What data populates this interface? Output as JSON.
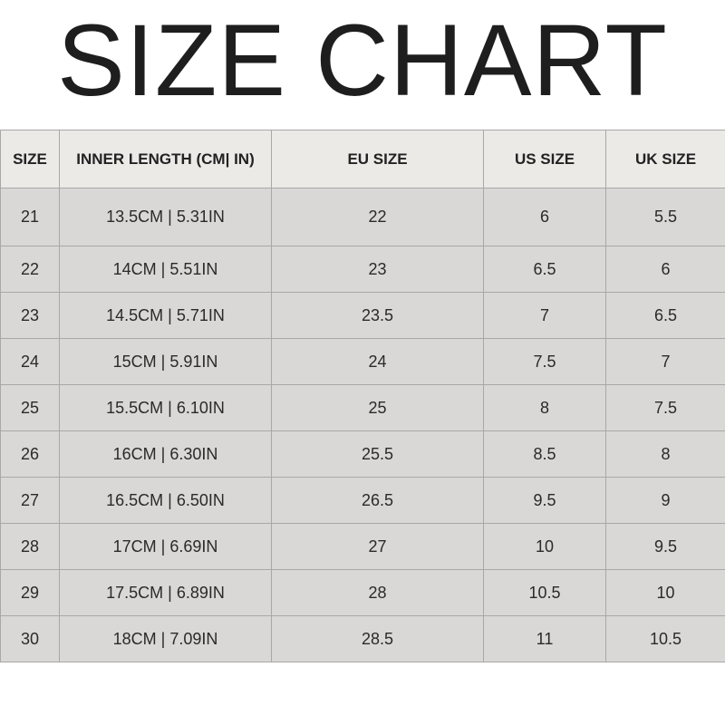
{
  "title": "SIZE CHART",
  "table": {
    "headers": [
      "SIZE",
      "INNER LENGTH (CM| IN)",
      "EU SIZE",
      "US SIZE",
      "UK SIZE"
    ],
    "rows": [
      [
        "21",
        "13.5CM | 5.31IN",
        "22",
        "6",
        "5.5"
      ],
      [
        "22",
        "14CM | 5.51IN",
        "23",
        "6.5",
        "6"
      ],
      [
        "23",
        "14.5CM | 5.71IN",
        "23.5",
        "7",
        "6.5"
      ],
      [
        "24",
        "15CM | 5.91IN",
        "24",
        "7.5",
        "7"
      ],
      [
        "25",
        "15.5CM | 6.10IN",
        "25",
        "8",
        "7.5"
      ],
      [
        "26",
        "16CM | 6.30IN",
        "25.5",
        "8.5",
        "8"
      ],
      [
        "27",
        "16.5CM | 6.50IN",
        "26.5",
        "9.5",
        "9"
      ],
      [
        "28",
        "17CM | 6.69IN",
        "27",
        "10",
        "9.5"
      ],
      [
        "29",
        "17.5CM | 6.89IN",
        "28",
        "10.5",
        "10"
      ],
      [
        "30",
        "18CM | 7.09IN",
        "28.5",
        "11",
        "10.5"
      ]
    ]
  },
  "colors": {
    "header_bg": "#ebeae7",
    "row_bg": "#d9d8d6",
    "border": "#a8a8a8",
    "text": "#222222"
  }
}
